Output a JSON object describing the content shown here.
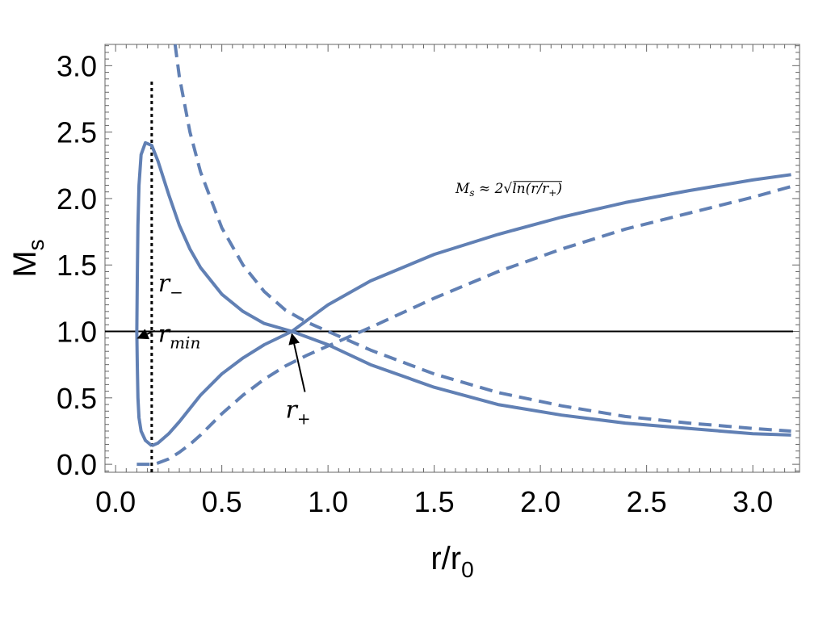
{
  "chart_data": {
    "type": "line",
    "xlabel": "r/r",
    "xlabel_sub": "0",
    "ylabel": "M",
    "ylabel_sub": "s",
    "xlim": [
      -0.05,
      3.22
    ],
    "ylim": [
      -0.06,
      3.16
    ],
    "xticks": [
      "0.0",
      "0.5",
      "1.0",
      "1.5",
      "2.0",
      "2.5",
      "3.0"
    ],
    "yticks": [
      "0.0",
      "0.5",
      "1.0",
      "1.5",
      "2.0",
      "2.5",
      "3.0"
    ],
    "grid": false,
    "legend": "none",
    "colors": {
      "curve": "#6180b4",
      "reference": "#000000"
    },
    "series": [
      {
        "style": "solid",
        "x": [
          0.17,
          0.14,
          0.12,
          0.11,
          0.105,
          0.102,
          0.1,
          0.102,
          0.105,
          0.11,
          0.12,
          0.14,
          0.17,
          0.2,
          0.25,
          0.3,
          0.35,
          0.4,
          0.5,
          0.6,
          0.7,
          0.83,
          1.0,
          1.2,
          1.5,
          1.8,
          2.1,
          2.4,
          2.7,
          3.0,
          3.18
        ],
        "y": [
          0.14,
          0.18,
          0.25,
          0.35,
          0.5,
          0.75,
          1.0,
          1.4,
          1.8,
          2.1,
          2.33,
          2.42,
          2.4,
          2.28,
          2.03,
          1.8,
          1.62,
          1.48,
          1.28,
          1.15,
          1.06,
          1.0,
          0.9,
          0.75,
          0.58,
          0.45,
          0.37,
          0.31,
          0.27,
          0.23,
          0.22
        ]
      },
      {
        "style": "solid",
        "x": [
          0.17,
          0.2,
          0.25,
          0.3,
          0.4,
          0.5,
          0.6,
          0.7,
          0.83,
          1.0,
          1.2,
          1.5,
          1.8,
          2.1,
          2.4,
          2.7,
          3.0,
          3.18
        ],
        "y": [
          0.14,
          0.16,
          0.23,
          0.32,
          0.52,
          0.68,
          0.8,
          0.9,
          1.0,
          1.2,
          1.38,
          1.58,
          1.73,
          1.86,
          1.97,
          2.06,
          2.14,
          2.18
        ]
      },
      {
        "style": "dashed",
        "x": [
          0.28,
          0.3,
          0.35,
          0.4,
          0.5,
          0.6,
          0.7,
          0.8,
          0.9,
          1.0,
          1.2,
          1.5,
          1.8,
          2.1,
          2.4,
          2.7,
          3.0,
          3.18
        ],
        "y": [
          3.16,
          2.92,
          2.5,
          2.2,
          1.78,
          1.5,
          1.3,
          1.16,
          1.07,
          1.0,
          0.86,
          0.68,
          0.54,
          0.44,
          0.36,
          0.31,
          0.27,
          0.25
        ]
      },
      {
        "style": "dashed",
        "x": [
          0.1,
          0.15,
          0.18,
          0.2,
          0.25,
          0.3,
          0.35,
          0.4,
          0.5,
          0.6,
          0.7,
          0.8,
          0.9,
          1.0,
          1.2,
          1.5,
          1.8,
          2.1,
          2.4,
          2.7,
          3.0,
          3.18
        ],
        "y": [
          0.0,
          0.0,
          0.0,
          0.01,
          0.04,
          0.09,
          0.15,
          0.22,
          0.38,
          0.52,
          0.64,
          0.74,
          0.82,
          0.89,
          1.03,
          1.25,
          1.45,
          1.62,
          1.77,
          1.89,
          2.01,
          2.09
        ]
      }
    ],
    "reference_lines": [
      {
        "orientation": "horizontal",
        "style": "solid",
        "y": 1.0
      },
      {
        "orientation": "vertical",
        "style": "dotted",
        "x": 0.17,
        "y_range": [
          -0.06,
          2.88
        ]
      }
    ],
    "annotations": [
      {
        "id": "r_minus",
        "main": "r",
        "sub": "−",
        "x": 0.2,
        "y": 1.3
      },
      {
        "id": "r_min",
        "main": "r",
        "sub": "min",
        "x": 0.2,
        "y": 0.92,
        "arrow_to": {
          "x": 0.105,
          "y": 0.95
        }
      },
      {
        "id": "r_plus",
        "main": "r",
        "sub": "+",
        "x": 0.8,
        "y": 0.35,
        "arrow_to": {
          "x": 0.83,
          "y": 0.98
        }
      },
      {
        "id": "formula",
        "text": "M",
        "sub": "s",
        "rest": " ≈ 2",
        "sqrt": "ln(r/r",
        "sqrt_sub": "+",
        "sqrt_end": ")",
        "x": 1.6,
        "y": 2.08
      }
    ]
  }
}
